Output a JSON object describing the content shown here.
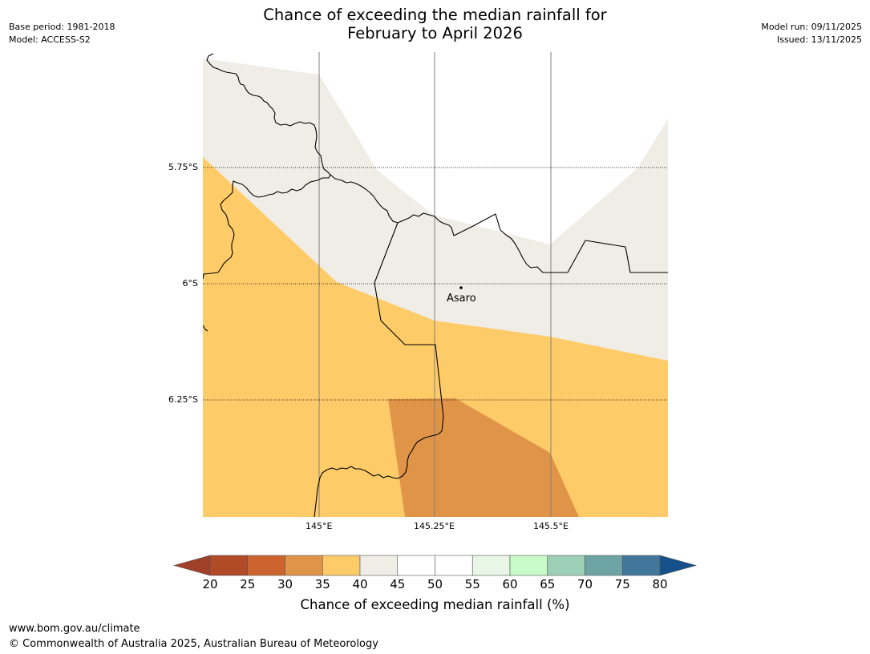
{
  "header": {
    "title_line1": "Chance of exceeding the median rainfall for",
    "title_line2": "February to April 2026",
    "base_period": "Base period: 1981-2018",
    "model": "Model: ACCESS-S2",
    "model_run": "Model run: 09/11/2025",
    "issued": "Issued: 13/11/2025"
  },
  "map": {
    "lat_labels": [
      "5.75°S",
      "6°S",
      "6.25°S"
    ],
    "lon_labels": [
      "145°E",
      "145.25°E",
      "145.5°E"
    ],
    "place": "Asaro",
    "colors": {
      "band_40_45": "#f0ece6",
      "band_35_40": "#fecb69",
      "band_30_35": "#e09448",
      "border": "#000000",
      "gridline": "#808080"
    }
  },
  "legend": {
    "title": "Chance of exceeding median rainfall (%)",
    "ticks": [
      "20",
      "25",
      "30",
      "35",
      "40",
      "45",
      "50",
      "55",
      "60",
      "65",
      "70",
      "75",
      "80"
    ],
    "under_color": "#a0402a",
    "over_color": "#15508a",
    "bins": [
      {
        "range": "20-25",
        "color": "#b14a27"
      },
      {
        "range": "25-30",
        "color": "#cd6430"
      },
      {
        "range": "30-35",
        "color": "#e09448"
      },
      {
        "range": "35-40",
        "color": "#fecb69"
      },
      {
        "range": "40-45",
        "color": "#f0ece6"
      },
      {
        "range": "45-50",
        "color": "#ffffff"
      },
      {
        "range": "50-55",
        "color": "#ffffff"
      },
      {
        "range": "55-60",
        "color": "#e8f6e6"
      },
      {
        "range": "60-65",
        "color": "#c8fbc8"
      },
      {
        "range": "65-70",
        "color": "#9dcfb6"
      },
      {
        "range": "70-75",
        "color": "#6ea3a4"
      },
      {
        "range": "75-80",
        "color": "#41779b"
      }
    ]
  },
  "footer": {
    "url": "www.bom.gov.au/climate",
    "copyright": "© Commonwealth of Australia 2025, Australian Bureau of Meteorology"
  }
}
